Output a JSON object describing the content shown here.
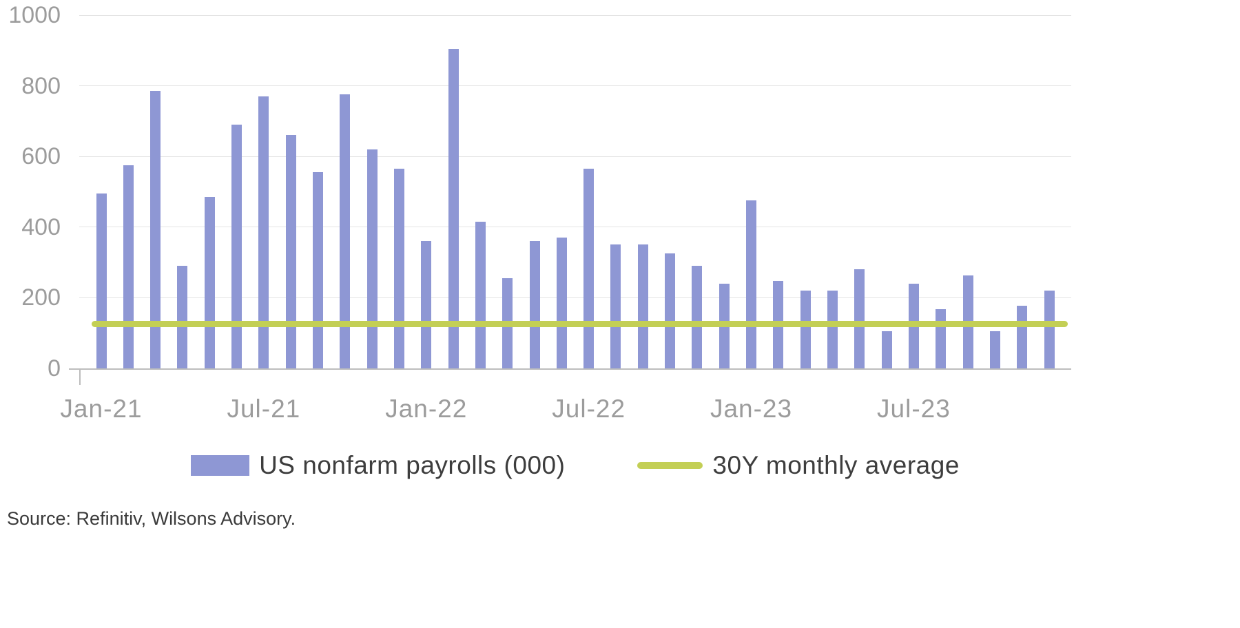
{
  "chart_data": {
    "type": "bar",
    "title": "",
    "categories": [
      "Jan-21",
      "Feb-21",
      "Mar-21",
      "Apr-21",
      "May-21",
      "Jun-21",
      "Jul-21",
      "Aug-21",
      "Sep-21",
      "Oct-21",
      "Nov-21",
      "Dec-21",
      "Jan-22",
      "Feb-22",
      "Mar-22",
      "Apr-22",
      "May-22",
      "Jun-22",
      "Jul-22",
      "Aug-22",
      "Sep-22",
      "Oct-22",
      "Nov-22",
      "Dec-22",
      "Jan-23",
      "Feb-23",
      "Mar-23",
      "Apr-23",
      "May-23",
      "Jun-23",
      "Jul-23",
      "Aug-23",
      "Sep-23",
      "Oct-23",
      "Nov-23",
      "Dec-23"
    ],
    "series": [
      {
        "name": "US nonfarm payrolls (000)",
        "values": [
          495,
          575,
          785,
          290,
          485,
          690,
          770,
          660,
          555,
          775,
          620,
          565,
          360,
          905,
          415,
          255,
          360,
          370,
          565,
          350,
          350,
          325,
          290,
          240,
          475,
          248,
          220,
          220,
          280,
          105,
          240,
          168,
          263,
          105,
          177,
          220
        ]
      }
    ],
    "average_line": {
      "name": "30Y monthly average",
      "value": 125
    },
    "ylim": [
      0,
      1000
    ],
    "y_ticks": [
      0,
      200,
      400,
      600,
      800,
      1000
    ],
    "x_tick_labels": [
      "Jan-21",
      "Jul-21",
      "Jan-22",
      "Jul-22",
      "Jan-23",
      "Jul-23"
    ],
    "x_tick_indices": [
      0,
      6,
      12,
      18,
      24,
      30
    ],
    "grid": true,
    "legend_position": "bottom",
    "colors": {
      "bar": "#8e97d4",
      "line": "#c3cf55",
      "grid": "#e4e4e4",
      "axis": "#bdbdbd",
      "tick_text": "#9c9c9c",
      "legend_text": "#3d3d3d"
    }
  },
  "legend": {
    "items": [
      {
        "label": "US nonfarm payrolls (000)",
        "swatch": "bar"
      },
      {
        "label": "30Y monthly average",
        "swatch": "line"
      }
    ]
  },
  "source": {
    "text": "Source: Refinitiv, Wilsons Advisory."
  }
}
